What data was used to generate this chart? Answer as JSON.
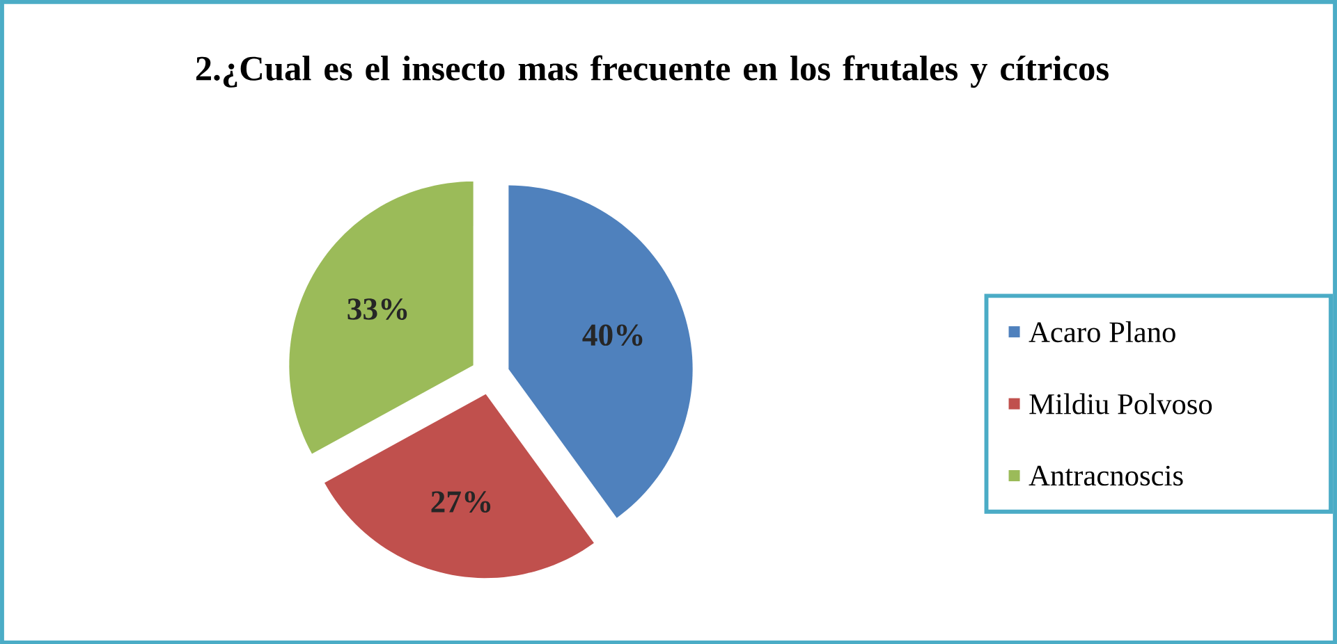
{
  "chart_data": {
    "type": "pie",
    "title": "2.¿Cual es el insecto mas frecuente en los frutales y cítricos",
    "categories": [
      "Acaro Plano",
      "Mildiu Polvoso",
      "Antracnoscis"
    ],
    "values": [
      40,
      27,
      33
    ],
    "value_labels": [
      "40%",
      "27%",
      "33%"
    ],
    "colors": [
      "#4f81bd",
      "#c0504d",
      "#9bbb59"
    ],
    "legend": "right"
  }
}
